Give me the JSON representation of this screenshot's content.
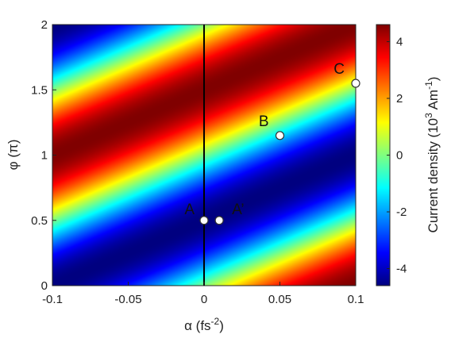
{
  "chart_data": {
    "type": "heatmap",
    "title": "",
    "xlabel": {
      "main": "α (fs",
      "sup": "-2",
      "tail": ")"
    },
    "ylabel": "φ (π)",
    "xlim": [
      -0.1,
      0.1
    ],
    "ylim": [
      0,
      2
    ],
    "x_ticks": [
      {
        "value": -0.1,
        "label": "-0.1"
      },
      {
        "value": -0.05,
        "label": "-0.05"
      },
      {
        "value": 0,
        "label": "0"
      },
      {
        "value": 0.05,
        "label": "0.05"
      },
      {
        "value": 0.1,
        "label": "0.1"
      }
    ],
    "y_ticks": [
      {
        "value": 0,
        "label": "0"
      },
      {
        "value": 0.5,
        "label": "0.5"
      },
      {
        "value": 1,
        "label": "1"
      },
      {
        "value": 1.5,
        "label": "1.5"
      },
      {
        "value": 2,
        "label": "2"
      }
    ],
    "colorbar": {
      "label": {
        "pre": "Current density (10",
        "sup1": "3",
        "mid": " Am",
        "sup2": "-1",
        "post": ")"
      },
      "range": [
        -4.6,
        4.6
      ],
      "ticks": [
        {
          "value": -4,
          "label": "-4"
        },
        {
          "value": -2,
          "label": "-2"
        },
        {
          "value": 0,
          "label": "0"
        },
        {
          "value": 2,
          "label": "2"
        },
        {
          "value": 4,
          "label": "4"
        }
      ],
      "colormap": "jet"
    },
    "field": {
      "description_formula": "J(α, φ) ≈ 4.6 · cos(π·(φ − 5·α − 1.5))",
      "amplitude": 4.6,
      "phase_offset_pi": 1.5,
      "slope_pi_per_fs2": 5
    },
    "vertical_line": {
      "x": 0,
      "color": "#000000"
    },
    "points": [
      {
        "label": "A",
        "x": 0,
        "y": 0.5,
        "label_side": "left"
      },
      {
        "label": "A’",
        "x": 0.01,
        "y": 0.5,
        "label_side": "right"
      },
      {
        "label": "B",
        "x": 0.05,
        "y": 1.15,
        "label_side": "upper-left"
      },
      {
        "label": "C",
        "x": 0.1,
        "y": 1.55,
        "label_side": "upper-left"
      }
    ]
  }
}
